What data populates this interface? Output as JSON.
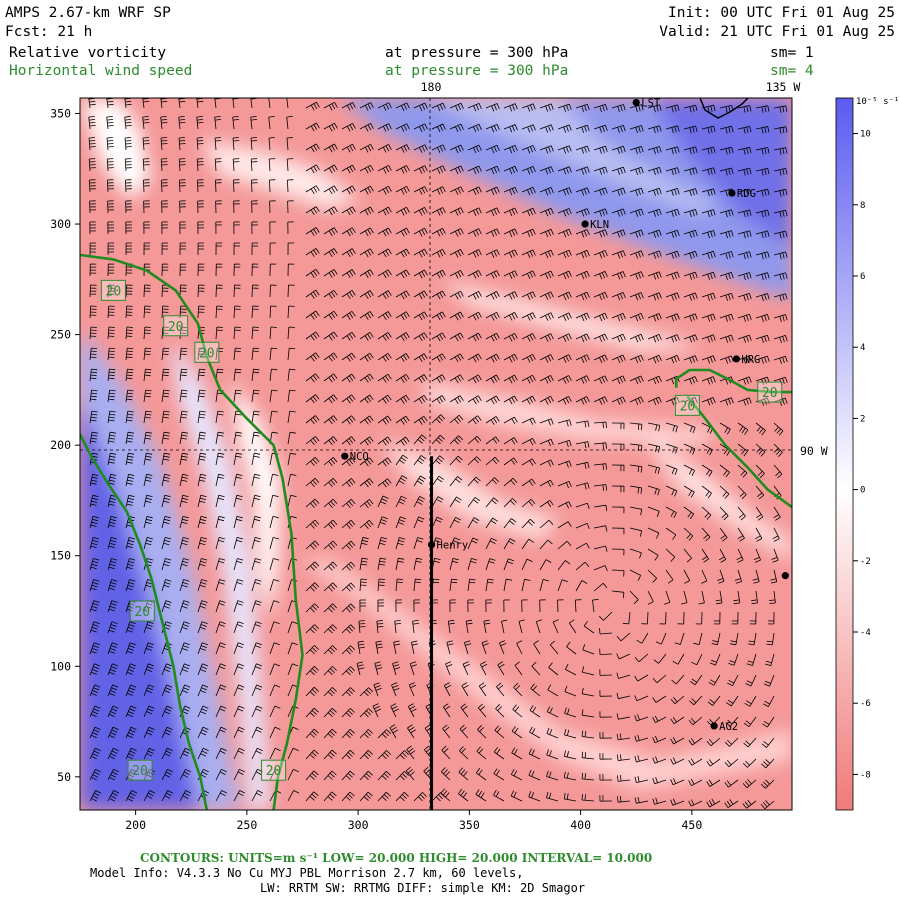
{
  "header": {
    "model_title": "AMPS 2.67-km WRF SP",
    "init_line": "Init: 00 UTC Fri 01 Aug 25",
    "fcst_line": "Fcst:    21 h",
    "valid_line": "Valid: 21 UTC Fri 01 Aug 25",
    "field1_name": "Relative vorticity",
    "field1_level": "at pressure =  300 hPa",
    "field1_sm": "sm= 1",
    "field2_name": "Horizontal wind speed",
    "field2_level": "at pressure =  300 hPa",
    "field2_sm": "sm= 4"
  },
  "map_labels": {
    "meridian_top": "180",
    "meridian_top_right": "135 W",
    "meridian_right": "90 W"
  },
  "colorbar": {
    "unit_label": "10⁻⁵ s⁻¹",
    "ticks": [
      "10",
      "8",
      "6",
      "4",
      "2",
      "0",
      "-2",
      "-4",
      "-6",
      "-8"
    ],
    "colors": {
      "positive": "#5b5bf0",
      "zero": "#ffffff",
      "negative": "#f07a7a"
    }
  },
  "stations": [
    {
      "name": "LST",
      "x": 425,
      "y": 355
    },
    {
      "name": "RDG",
      "x": 468,
      "y": 314
    },
    {
      "name": "KLN",
      "x": 402,
      "y": 300
    },
    {
      "name": "HRG",
      "x": 470,
      "y": 239
    },
    {
      "name": "NCO",
      "x": 294,
      "y": 195
    },
    {
      "name": "Henry",
      "x": 333,
      "y": 155
    },
    {
      "name": "AG2",
      "x": 460,
      "y": 73
    },
    {
      "name": "",
      "x": 492,
      "y": 141
    }
  ],
  "contour_labels": [
    "20",
    "20",
    "20",
    "20",
    "20",
    "20",
    "20",
    "20"
  ],
  "chart_data": {
    "type": "heatmap",
    "xlim": [
      175,
      495
    ],
    "ylim": [
      35,
      357
    ],
    "x_ticks": [
      200,
      250,
      300,
      350,
      400,
      450
    ],
    "y_ticks": [
      50,
      100,
      150,
      200,
      250,
      300,
      350
    ],
    "grid_lines": {
      "meridian_x": 333,
      "parallel_y": 195
    },
    "vertical_section_line": {
      "x": 333,
      "y_from": 35,
      "y_to": 195
    },
    "colorbar_range": [
      -9,
      11
    ],
    "wind_speed_contours": {
      "value": 20,
      "lines": [
        [
          [
            175,
            286
          ],
          [
            190,
            284
          ],
          [
            205,
            279
          ],
          [
            218,
            270
          ],
          [
            228,
            255
          ],
          [
            232,
            240
          ],
          [
            238,
            225
          ],
          [
            250,
            212
          ],
          [
            262,
            200
          ],
          [
            266,
            185
          ],
          [
            270,
            160
          ],
          [
            272,
            130
          ],
          [
            275,
            105
          ],
          [
            272,
            85
          ],
          [
            268,
            65
          ],
          [
            264,
            50
          ],
          [
            262,
            35
          ]
        ],
        [
          [
            175,
            205
          ],
          [
            180,
            195
          ],
          [
            188,
            182
          ],
          [
            196,
            170
          ],
          [
            202,
            155
          ],
          [
            207,
            140
          ],
          [
            212,
            120
          ],
          [
            217,
            100
          ],
          [
            220,
            82
          ],
          [
            224,
            65
          ],
          [
            229,
            50
          ],
          [
            232,
            35
          ]
        ],
        [
          [
            448,
            222
          ],
          [
            456,
            212
          ],
          [
            465,
            200
          ],
          [
            475,
            190
          ],
          [
            484,
            180
          ],
          [
            495,
            172
          ]
        ],
        [
          [
            443,
            226
          ],
          [
            443,
            230
          ],
          [
            449,
            234
          ],
          [
            458,
            234
          ],
          [
            466,
            230
          ],
          [
            475,
            225
          ],
          [
            486,
            224
          ],
          [
            495,
            224
          ]
        ]
      ]
    },
    "contour_footer": {
      "units_text": "CONTOURS:  UNITS=m s⁻¹  LOW=  20.000       HIGH=  20.000       INTERVAL=   10.000"
    }
  },
  "footer": {
    "model_info": "Model Info: V4.3.3    No Cu   MYJ PBL  Morrison              2.7 km, 60 levels,",
    "physics": "LW: RRTM SW: RRTMG   DIFF: simple KM: 2D Smagor"
  }
}
